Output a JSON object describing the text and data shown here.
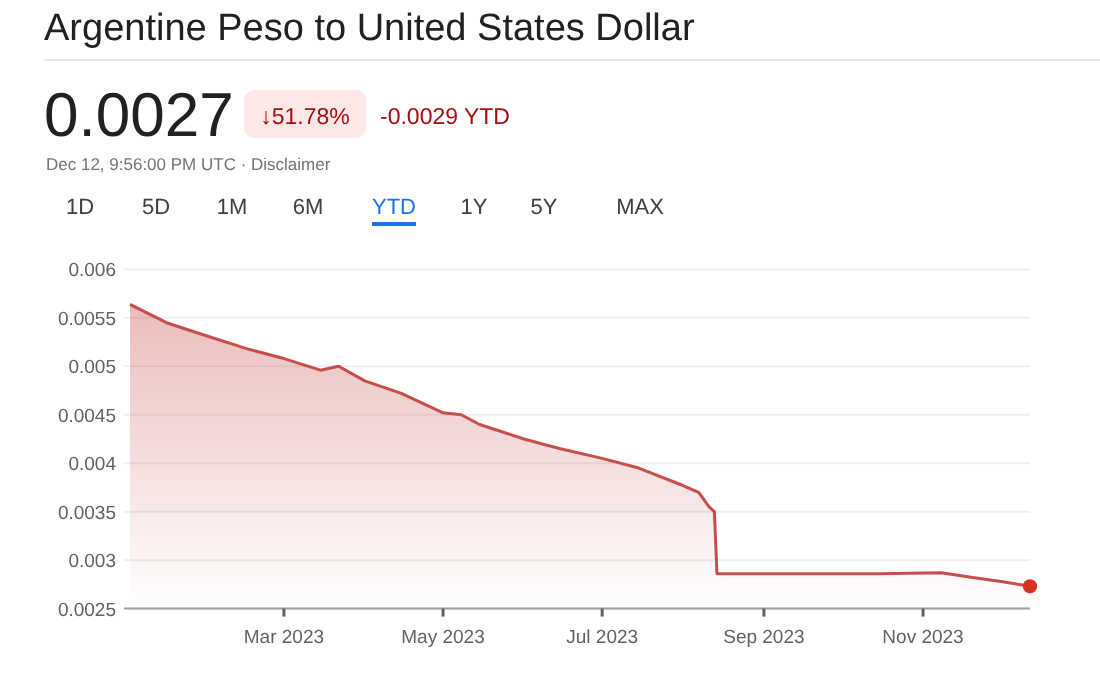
{
  "chart_data": {
    "type": "area",
    "title": "Argentine Peso to United States Dollar",
    "annotations": [
      "0.0027",
      "↓51.78%",
      "-0.0029 YTD",
      "Dec 12, 9:56:00 PM UTC · Disclaimer",
      "1D",
      "5D",
      "1M",
      "6M",
      "YTD",
      "1Y",
      "5Y",
      "MAX"
    ],
    "xlim": [
      "2023-01-01",
      "2023-12-12"
    ],
    "xticks": [
      {
        "value": "2023-03-01",
        "label": "Mar 2023"
      },
      {
        "value": "2023-05-01",
        "label": "May 2023"
      },
      {
        "value": "2023-07-01",
        "label": "Jul 2023"
      },
      {
        "value": "2023-09-01",
        "label": "Sep 2023"
      },
      {
        "value": "2023-11-01",
        "label": "Nov 2023"
      }
    ],
    "ylim": [
      0.0025,
      0.006
    ],
    "yticks": [
      0.0025,
      0.003,
      0.0035,
      0.004,
      0.0045,
      0.005,
      0.0055,
      0.006
    ],
    "grid": "y",
    "series": [
      {
        "color": "#c5504b",
        "marker": "none",
        "x": [
          "2023-01-01",
          "2023-01-15",
          "2023-02-01",
          "2023-02-15",
          "2023-03-01",
          "2023-03-15",
          "2023-03-22",
          "2023-04-01",
          "2023-04-15",
          "2023-05-01",
          "2023-05-08",
          "2023-05-15",
          "2023-06-01",
          "2023-06-15",
          "2023-07-01",
          "2023-07-15",
          "2023-08-01",
          "2023-08-07",
          "2023-08-11",
          "2023-08-13",
          "2023-08-14",
          "2023-09-15",
          "2023-10-15",
          "2023-11-08",
          "2023-11-20",
          "2023-12-01",
          "2023-12-12"
        ],
        "values": [
          0.00564,
          0.00545,
          0.0053,
          0.00518,
          0.00508,
          0.00496,
          0.005,
          0.00485,
          0.00472,
          0.00452,
          0.0045,
          0.0044,
          0.00425,
          0.00415,
          0.00405,
          0.00395,
          0.00377,
          0.0037,
          0.00355,
          0.0035,
          0.00286,
          0.00286,
          0.00286,
          0.00287,
          0.00282,
          0.00278,
          0.00273
        ]
      },
      {
        "type": "scatter",
        "color": "#d93025",
        "x": [
          "2023-12-12"
        ],
        "values": [
          0.00273
        ]
      }
    ]
  }
}
